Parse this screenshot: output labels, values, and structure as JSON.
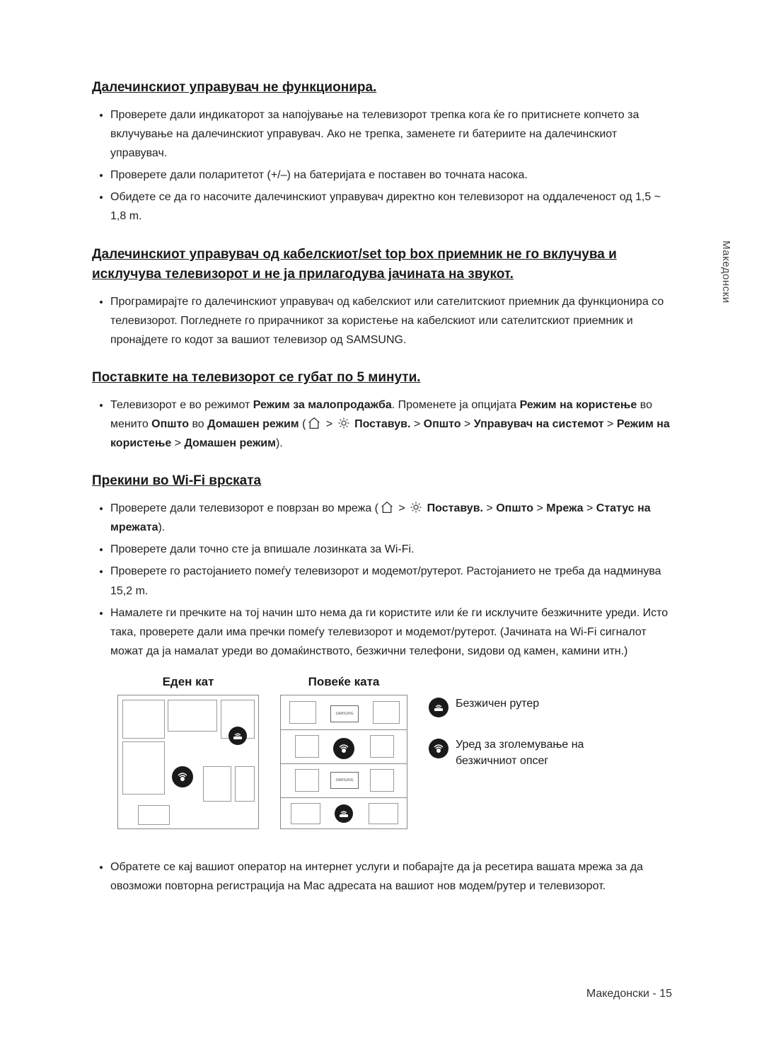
{
  "sideTab": "Македонски",
  "sections": [
    {
      "heading": "Далечинскиот управувач не функционира.",
      "items": [
        {
          "text": "Проверете дали индикаторот за напојување на телевизорот трепка кога ќе го притиснете копчето за вклучување на далечинскиот управувач. Ако не трепка, заменете ги батериите на далечинскиот управувач."
        },
        {
          "text": "Проверете дали поларитетот (+/–) на батеријата е поставен во точната насока."
        },
        {
          "text": "Обидете се да го насочите далечинскиот управувач директно кон телевизорот на оддалеченост од 1,5 ~ 1,8 m."
        }
      ]
    },
    {
      "heading": "Далечинскиот управувач од кабелскиот/set top box приемник не го вклучува и исклучува телевизорот и не ја прилагодува јачината на звукот.",
      "items": [
        {
          "text": "Програмирајте го далечинскиот управувач од кабелскиот или сателитскиот приемник да функционира со телевизорот. Погледнете го прирачникот за користење на кабелскиот или сателитскиот приемник и пронајдете го кодот за вашиот телевизор од SAMSUNG."
        }
      ]
    },
    {
      "heading": "Поставките на телевизорот се губат по 5 минути.",
      "items": [
        {
          "text": "Телевизорот е во режимот ",
          "trail": [
            {
              "bold": true,
              "text": "Режим за малопродажба"
            },
            {
              "bold": false,
              "text": ". Променете ја опцијата "
            },
            {
              "bold": true,
              "text": "Режим на користење"
            },
            {
              "bold": false,
              "text": " во менито "
            },
            {
              "bold": true,
              "text": "Општо"
            },
            {
              "bold": false,
              "text": " во "
            },
            {
              "bold": true,
              "text": "Домашен режим"
            },
            {
              "bold": false,
              "text": " ("
            },
            {
              "icon": "home"
            },
            {
              "bold": false,
              "text": " > "
            },
            {
              "icon": "gear"
            },
            {
              "bold": true,
              "text": " Поставув."
            },
            {
              "bold": false,
              "text": " > "
            },
            {
              "bold": true,
              "text": "Општо"
            },
            {
              "bold": false,
              "text": " > "
            },
            {
              "bold": true,
              "text": "Управувач на системот"
            },
            {
              "bold": false,
              "text": " > "
            },
            {
              "bold": true,
              "text": "Режим на користење"
            },
            {
              "bold": false,
              "text": " > "
            },
            {
              "bold": true,
              "text": "Домашен режим"
            },
            {
              "bold": false,
              "text": ")."
            }
          ]
        }
      ]
    },
    {
      "heading": "Прекини во Wi-Fi врската",
      "items": [
        {
          "text": "Проверете дали телевизорот е поврзан во мрежа (",
          "trail": [
            {
              "icon": "home"
            },
            {
              "bold": false,
              "text": " > "
            },
            {
              "icon": "gear"
            },
            {
              "bold": true,
              "text": " Поставув."
            },
            {
              "bold": false,
              "text": " > "
            },
            {
              "bold": true,
              "text": "Општо"
            },
            {
              "bold": false,
              "text": " > "
            },
            {
              "bold": true,
              "text": "Мрежа"
            },
            {
              "bold": false,
              "text": " > "
            },
            {
              "bold": true,
              "text": "Статус на мрежата"
            },
            {
              "bold": false,
              "text": ")."
            }
          ]
        },
        {
          "text": "Проверете дали точно сте ја впишале лозинката за Wi-Fi."
        },
        {
          "text": "Проверете го растојанието помеѓу телевизорот и модемот/рутерот. Растојанието не треба да надминува 15,2 m."
        },
        {
          "text": "Намалете ги пречките на тој начин што нема да ги користите или ќе ги исклучите безжичните уреди. Исто така, проверете дали има пречки помеѓу телевизорот и модемот/рутерот. (Јачината на Wi-Fi сигналот можат да ја намалат уреди во домаќинството, безжични телефони, ѕидови од камен, камини итн.)"
        }
      ],
      "afterDiagramItems": [
        {
          "text": "Обратете се кај вашиот оператор на интернет услуги и побарајте да ја ресетира вашата мрежа за да овозможи повторна регистрација на Mac адресата на вашиот нов модем/рутер и телевизорот."
        }
      ]
    }
  ],
  "diagram": {
    "col1Title": "Еден кат",
    "col2Title": "Повеќе ката",
    "legendRouter": "Безжичен рутер",
    "legendRepeater": "Уред за зголемување на безжичниот опсег",
    "tvLabel": "SAMSUNG"
  },
  "footer": "Македонски - 15"
}
